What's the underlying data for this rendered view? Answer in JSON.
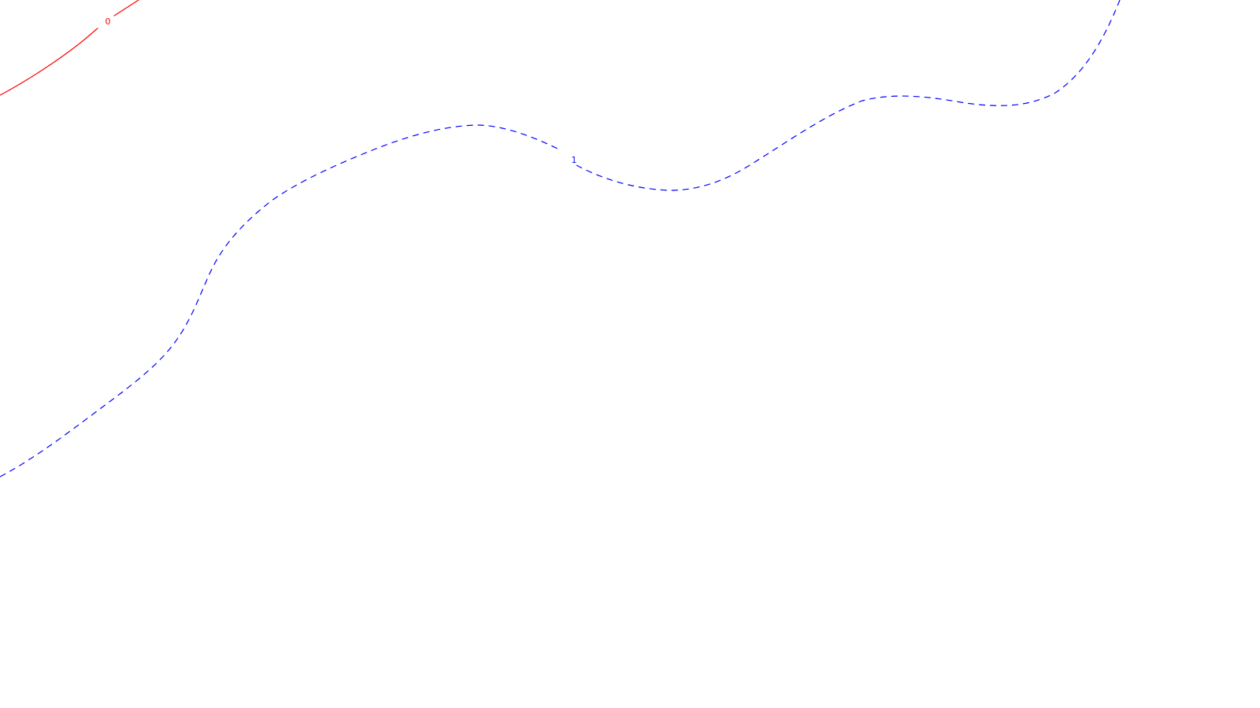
{
  "map": {
    "background_color": "#ffffff",
    "contours": [
      {
        "label": "0",
        "color": "#ff0000",
        "line_style": "solid"
      },
      {
        "label": "1",
        "color": "#0000ff",
        "line_style": "dashed"
      }
    ]
  }
}
